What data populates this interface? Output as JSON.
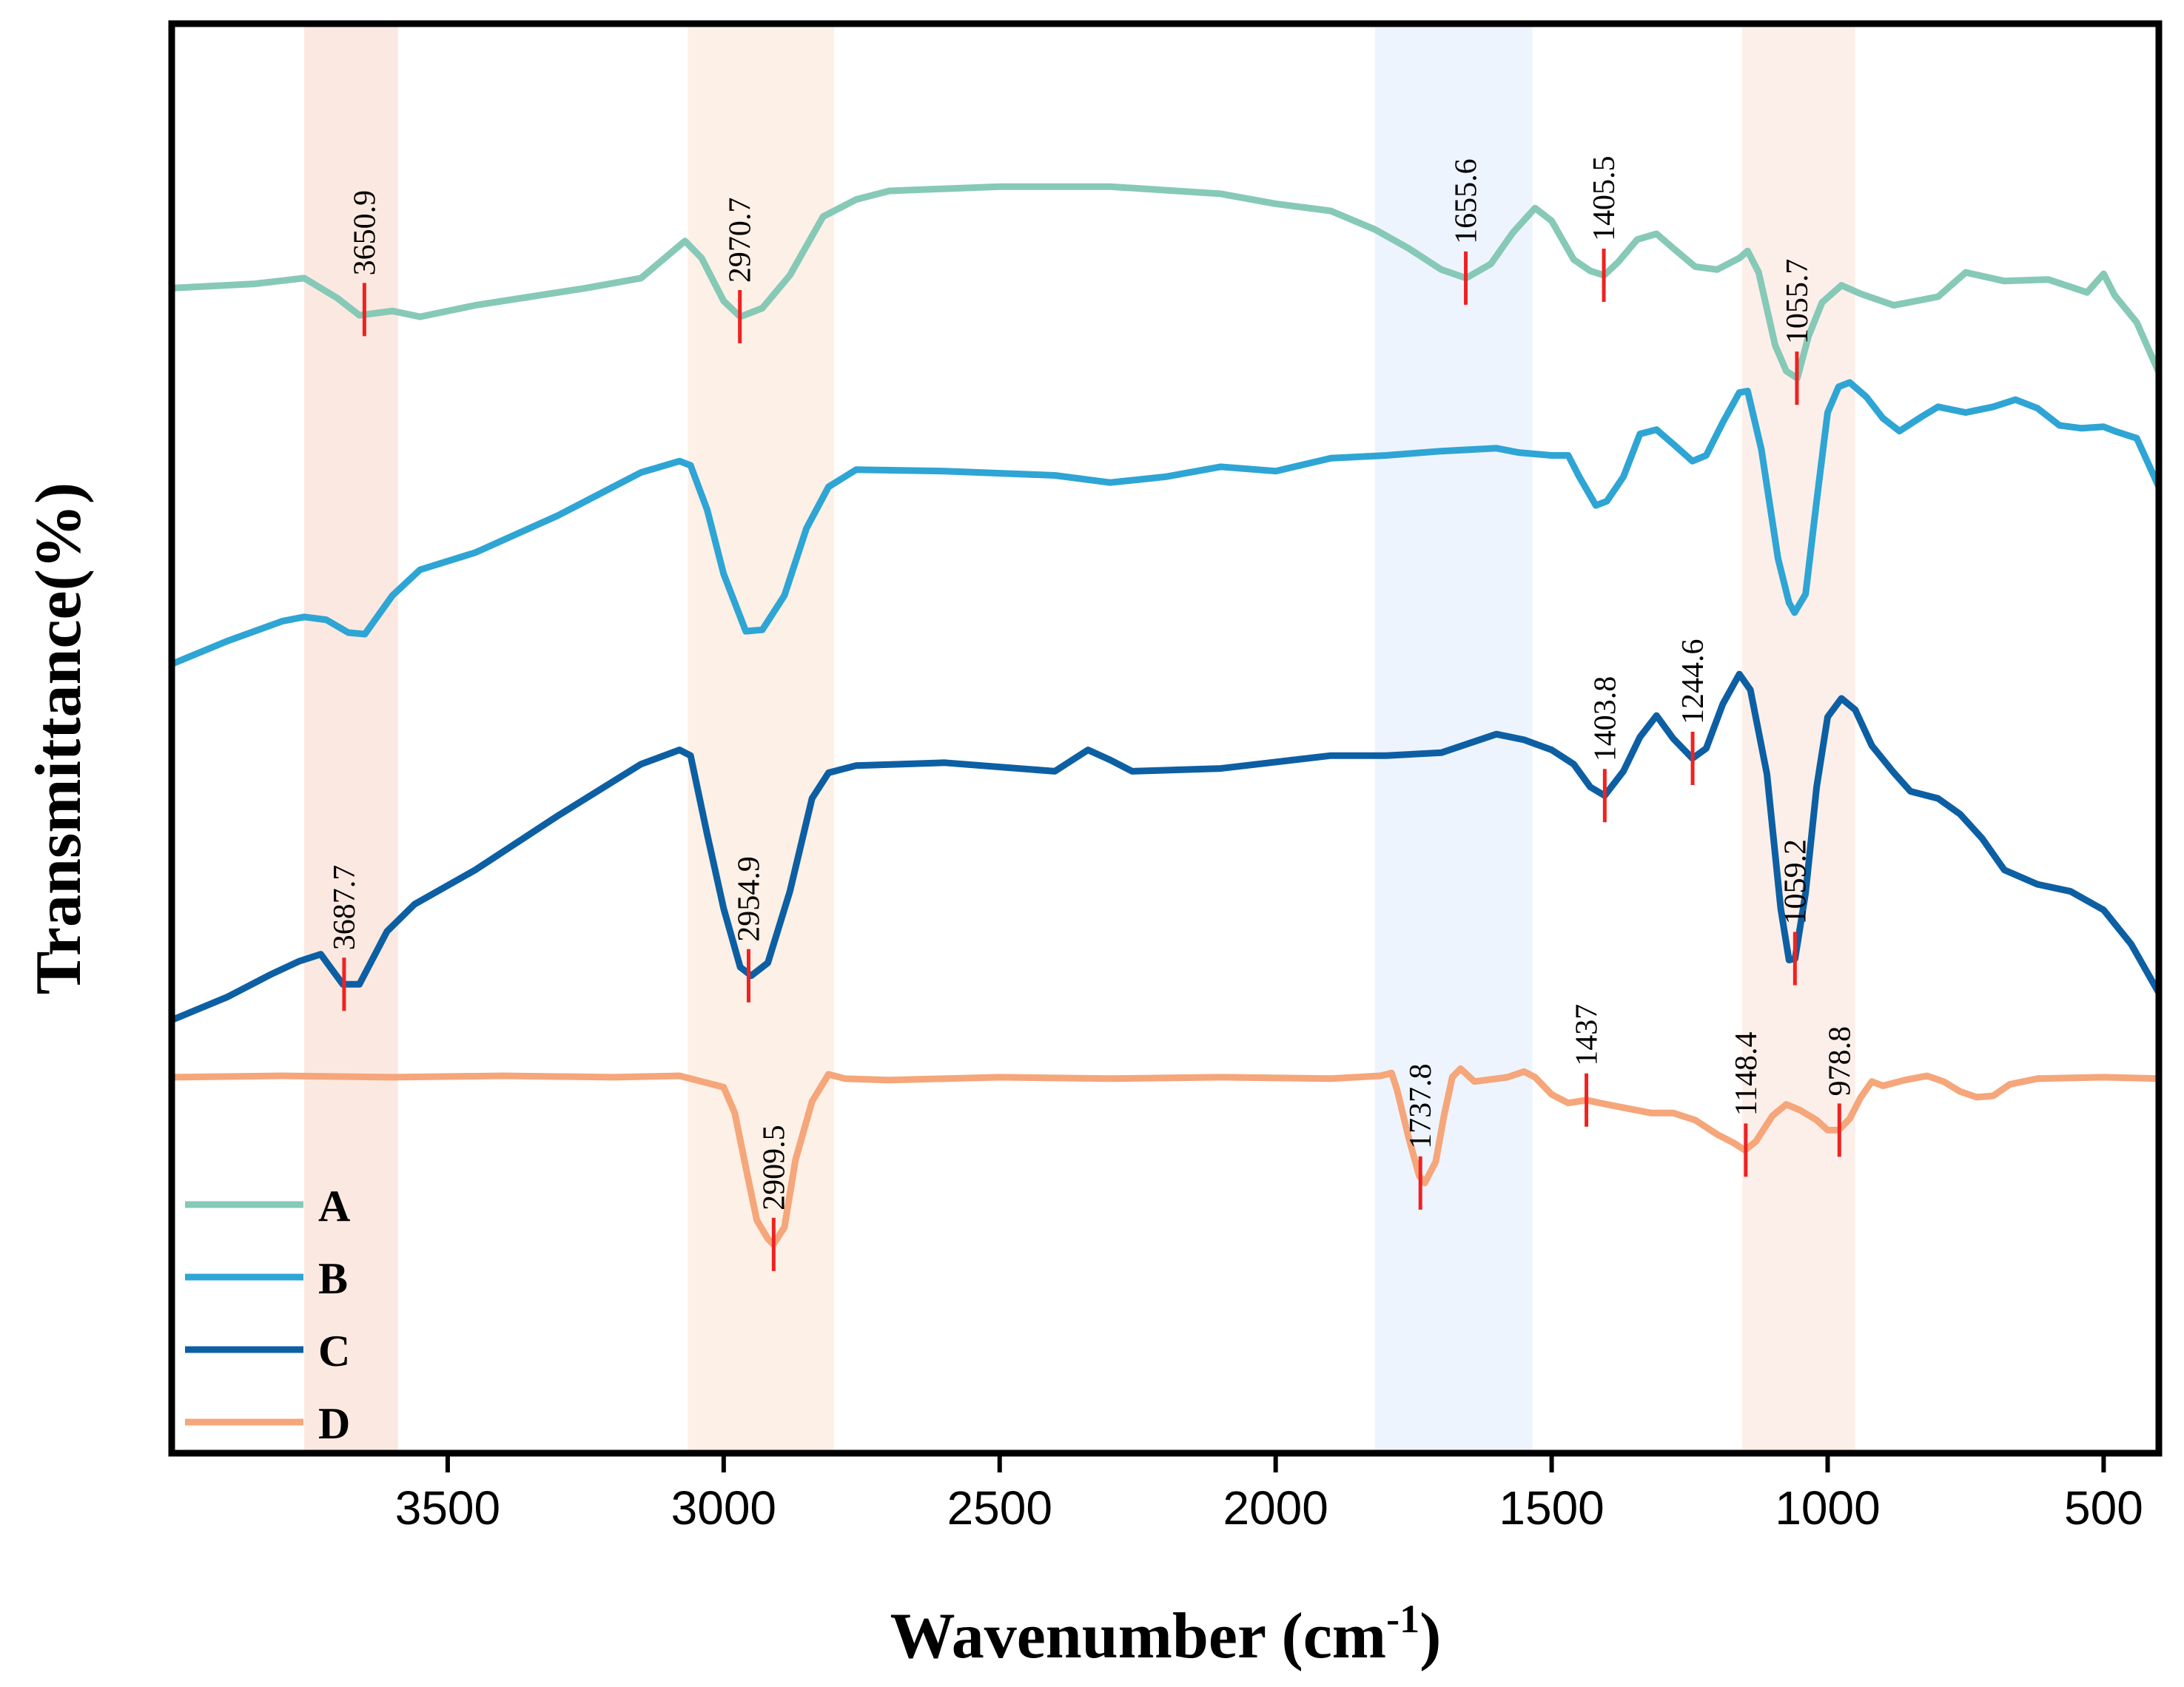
{
  "chart_data": {
    "type": "line",
    "title": "",
    "xlabel": "Wavenumber (cm",
    "xlabel_sup": "-1",
    "xlabel_close": ")",
    "ylabel": "Transmittance(%)",
    "xlim": [
      4000,
      400
    ],
    "xticks": [
      3500,
      3000,
      2500,
      2000,
      1500,
      1000,
      500
    ],
    "y_units": "arbitrary transmittance, stacked offsets (top = high)",
    "ylim": [
      0,
      100
    ],
    "legend_position": "bottom-left",
    "bands": [
      {
        "from": 3760,
        "to": 3590,
        "color": "#fbe9e1"
      },
      {
        "from": 3065,
        "to": 2800,
        "color": "#fdf0e6"
      },
      {
        "from": 1820,
        "to": 1535,
        "color": "#eef4fd"
      },
      {
        "from": 1155,
        "to": 950,
        "color": "#fcefea"
      }
    ],
    "series": [
      {
        "name": "A",
        "color": "#86c9b6",
        "points": [
          [
            4000,
            81.5
          ],
          [
            3850,
            81.8
          ],
          [
            3760,
            82.2
          ],
          [
            3700,
            80.8
          ],
          [
            3660,
            79.6
          ],
          [
            3600,
            79.9
          ],
          [
            3550,
            79.5
          ],
          [
            3450,
            80.3
          ],
          [
            3350,
            80.9
          ],
          [
            3250,
            81.5
          ],
          [
            3150,
            82.2
          ],
          [
            3070,
            84.8
          ],
          [
            3040,
            83.6
          ],
          [
            3000,
            80.6
          ],
          [
            2970,
            79.5
          ],
          [
            2930,
            80.1
          ],
          [
            2880,
            82.4
          ],
          [
            2820,
            86.5
          ],
          [
            2760,
            87.7
          ],
          [
            2700,
            88.3
          ],
          [
            2500,
            88.6
          ],
          [
            2300,
            88.6
          ],
          [
            2100,
            88.1
          ],
          [
            2000,
            87.4
          ],
          [
            1900,
            86.9
          ],
          [
            1820,
            85.6
          ],
          [
            1760,
            84.3
          ],
          [
            1700,
            82.8
          ],
          [
            1655,
            82.2
          ],
          [
            1610,
            83.2
          ],
          [
            1570,
            85.4
          ],
          [
            1530,
            87.1
          ],
          [
            1500,
            86.2
          ],
          [
            1460,
            83.5
          ],
          [
            1430,
            82.7
          ],
          [
            1405,
            82.4
          ],
          [
            1380,
            83.3
          ],
          [
            1345,
            84.9
          ],
          [
            1310,
            85.3
          ],
          [
            1280,
            84.3
          ],
          [
            1240,
            83.0
          ],
          [
            1200,
            82.8
          ],
          [
            1160,
            83.6
          ],
          [
            1145,
            84.1
          ],
          [
            1125,
            82.6
          ],
          [
            1095,
            77.5
          ],
          [
            1075,
            75.7
          ],
          [
            1055,
            75.2
          ],
          [
            1035,
            78.1
          ],
          [
            1010,
            80.5
          ],
          [
            975,
            81.7
          ],
          [
            940,
            81.1
          ],
          [
            880,
            80.3
          ],
          [
            800,
            80.9
          ],
          [
            750,
            82.6
          ],
          [
            680,
            82.0
          ],
          [
            600,
            82.1
          ],
          [
            530,
            81.2
          ],
          [
            500,
            82.5
          ],
          [
            480,
            81.0
          ],
          [
            440,
            79.1
          ],
          [
            400,
            75.6
          ]
        ]
      },
      {
        "name": "B",
        "color": "#2ea5d4",
        "points": [
          [
            4000,
            55.2
          ],
          [
            3900,
            56.8
          ],
          [
            3800,
            58.2
          ],
          [
            3760,
            58.5
          ],
          [
            3720,
            58.3
          ],
          [
            3680,
            57.4
          ],
          [
            3650,
            57.3
          ],
          [
            3600,
            60.0
          ],
          [
            3550,
            61.8
          ],
          [
            3450,
            63.0
          ],
          [
            3300,
            65.6
          ],
          [
            3150,
            68.6
          ],
          [
            3080,
            69.4
          ],
          [
            3060,
            69.1
          ],
          [
            3030,
            66.0
          ],
          [
            3000,
            61.5
          ],
          [
            2960,
            57.5
          ],
          [
            2930,
            57.6
          ],
          [
            2890,
            60.0
          ],
          [
            2850,
            64.7
          ],
          [
            2810,
            67.6
          ],
          [
            2760,
            68.8
          ],
          [
            2600,
            68.7
          ],
          [
            2400,
            68.4
          ],
          [
            2300,
            67.9
          ],
          [
            2200,
            68.3
          ],
          [
            2100,
            69.0
          ],
          [
            2000,
            68.7
          ],
          [
            1900,
            69.6
          ],
          [
            1800,
            69.8
          ],
          [
            1700,
            70.1
          ],
          [
            1600,
            70.3
          ],
          [
            1560,
            70.0
          ],
          [
            1500,
            69.8
          ],
          [
            1470,
            69.8
          ],
          [
            1450,
            68.3
          ],
          [
            1420,
            66.3
          ],
          [
            1400,
            66.6
          ],
          [
            1370,
            68.3
          ],
          [
            1340,
            71.3
          ],
          [
            1310,
            71.6
          ],
          [
            1280,
            70.6
          ],
          [
            1245,
            69.4
          ],
          [
            1220,
            69.8
          ],
          [
            1190,
            72.1
          ],
          [
            1160,
            74.2
          ],
          [
            1145,
            74.3
          ],
          [
            1120,
            70.2
          ],
          [
            1090,
            62.6
          ],
          [
            1070,
            59.5
          ],
          [
            1060,
            58.8
          ],
          [
            1040,
            60.1
          ],
          [
            1020,
            66.6
          ],
          [
            1000,
            72.8
          ],
          [
            980,
            74.6
          ],
          [
            960,
            74.9
          ],
          [
            930,
            73.9
          ],
          [
            900,
            72.4
          ],
          [
            870,
            71.5
          ],
          [
            830,
            72.5
          ],
          [
            800,
            73.2
          ],
          [
            750,
            72.8
          ],
          [
            700,
            73.2
          ],
          [
            660,
            73.7
          ],
          [
            620,
            73.1
          ],
          [
            580,
            71.9
          ],
          [
            540,
            71.7
          ],
          [
            500,
            71.8
          ],
          [
            480,
            71.5
          ],
          [
            440,
            71.0
          ],
          [
            400,
            67.6
          ]
        ]
      },
      {
        "name": "C",
        "color": "#0d5fa3",
        "points": [
          [
            4000,
            30.3
          ],
          [
            3900,
            31.9
          ],
          [
            3820,
            33.5
          ],
          [
            3770,
            34.4
          ],
          [
            3730,
            34.9
          ],
          [
            3690,
            32.8
          ],
          [
            3660,
            32.8
          ],
          [
            3610,
            36.5
          ],
          [
            3560,
            38.4
          ],
          [
            3450,
            40.8
          ],
          [
            3300,
            44.6
          ],
          [
            3150,
            48.2
          ],
          [
            3080,
            49.2
          ],
          [
            3060,
            48.8
          ],
          [
            3030,
            43.3
          ],
          [
            3000,
            38.1
          ],
          [
            2970,
            34.0
          ],
          [
            2950,
            33.4
          ],
          [
            2920,
            34.3
          ],
          [
            2880,
            39.3
          ],
          [
            2840,
            45.8
          ],
          [
            2810,
            47.6
          ],
          [
            2760,
            48.1
          ],
          [
            2600,
            48.3
          ],
          [
            2400,
            47.7
          ],
          [
            2340,
            49.2
          ],
          [
            2300,
            48.5
          ],
          [
            2260,
            47.7
          ],
          [
            2100,
            47.9
          ],
          [
            1900,
            48.8
          ],
          [
            1800,
            48.8
          ],
          [
            1700,
            49.0
          ],
          [
            1600,
            50.3
          ],
          [
            1550,
            49.9
          ],
          [
            1500,
            49.2
          ],
          [
            1460,
            48.2
          ],
          [
            1430,
            46.6
          ],
          [
            1404,
            46.0
          ],
          [
            1370,
            47.7
          ],
          [
            1340,
            50.1
          ],
          [
            1310,
            51.6
          ],
          [
            1280,
            50.0
          ],
          [
            1245,
            48.6
          ],
          [
            1220,
            49.3
          ],
          [
            1190,
            52.4
          ],
          [
            1160,
            54.5
          ],
          [
            1140,
            53.4
          ],
          [
            1110,
            47.5
          ],
          [
            1085,
            38.1
          ],
          [
            1070,
            34.5
          ],
          [
            1059,
            34.6
          ],
          [
            1040,
            39.2
          ],
          [
            1020,
            46.6
          ],
          [
            1000,
            51.5
          ],
          [
            975,
            52.8
          ],
          [
            950,
            52.0
          ],
          [
            920,
            49.5
          ],
          [
            880,
            47.6
          ],
          [
            850,
            46.3
          ],
          [
            800,
            45.8
          ],
          [
            760,
            44.7
          ],
          [
            720,
            43.0
          ],
          [
            680,
            40.8
          ],
          [
            620,
            39.8
          ],
          [
            560,
            39.3
          ],
          [
            500,
            38.0
          ],
          [
            450,
            35.6
          ],
          [
            400,
            32.2
          ]
        ]
      },
      {
        "name": "D",
        "color": "#f5a67a",
        "points": [
          [
            4000,
            26.3
          ],
          [
            3800,
            26.4
          ],
          [
            3600,
            26.3
          ],
          [
            3400,
            26.4
          ],
          [
            3200,
            26.3
          ],
          [
            3080,
            26.4
          ],
          [
            3050,
            26.1
          ],
          [
            3000,
            25.6
          ],
          [
            2980,
            23.8
          ],
          [
            2960,
            20.0
          ],
          [
            2940,
            16.3
          ],
          [
            2920,
            15.0
          ],
          [
            2910,
            14.6
          ],
          [
            2890,
            15.8
          ],
          [
            2870,
            20.5
          ],
          [
            2840,
            24.6
          ],
          [
            2810,
            26.5
          ],
          [
            2780,
            26.2
          ],
          [
            2700,
            26.1
          ],
          [
            2500,
            26.3
          ],
          [
            2300,
            26.2
          ],
          [
            2100,
            26.3
          ],
          [
            1900,
            26.2
          ],
          [
            1810,
            26.4
          ],
          [
            1790,
            26.6
          ],
          [
            1780,
            25.4
          ],
          [
            1760,
            22.2
          ],
          [
            1740,
            19.4
          ],
          [
            1730,
            18.9
          ],
          [
            1710,
            20.4
          ],
          [
            1695,
            23.6
          ],
          [
            1680,
            26.3
          ],
          [
            1665,
            26.9
          ],
          [
            1640,
            26.0
          ],
          [
            1580,
            26.3
          ],
          [
            1550,
            26.7
          ],
          [
            1530,
            26.3
          ],
          [
            1500,
            25.1
          ],
          [
            1470,
            24.5
          ],
          [
            1437,
            24.7
          ],
          [
            1400,
            24.4
          ],
          [
            1360,
            24.1
          ],
          [
            1320,
            23.8
          ],
          [
            1280,
            23.8
          ],
          [
            1240,
            23.3
          ],
          [
            1200,
            22.3
          ],
          [
            1170,
            21.7
          ],
          [
            1150,
            21.2
          ],
          [
            1130,
            21.8
          ],
          [
            1100,
            23.6
          ],
          [
            1075,
            24.4
          ],
          [
            1050,
            24.0
          ],
          [
            1020,
            23.3
          ],
          [
            1000,
            22.6
          ],
          [
            980,
            22.6
          ],
          [
            960,
            23.4
          ],
          [
            940,
            24.9
          ],
          [
            920,
            26.0
          ],
          [
            900,
            25.7
          ],
          [
            860,
            26.1
          ],
          [
            820,
            26.4
          ],
          [
            790,
            26.0
          ],
          [
            760,
            25.3
          ],
          [
            730,
            24.9
          ],
          [
            700,
            25.0
          ],
          [
            670,
            25.8
          ],
          [
            620,
            26.2
          ],
          [
            500,
            26.3
          ],
          [
            400,
            26.2
          ]
        ]
      }
    ],
    "annotations": [
      {
        "series": "A",
        "text": "3650.9",
        "x": 3650.9,
        "y": 80.0,
        "label_pos": "above"
      },
      {
        "series": "A",
        "text": "2970.7",
        "x": 2970.7,
        "y": 79.5,
        "label_pos": "above"
      },
      {
        "series": "A",
        "text": "1655.6",
        "x": 1655.6,
        "y": 82.2,
        "label_pos": "above"
      },
      {
        "series": "A",
        "text": "1405.5",
        "x": 1405.5,
        "y": 82.4,
        "label_pos": "above"
      },
      {
        "series": "A",
        "text": "1055.7",
        "x": 1055.7,
        "y": 75.2,
        "label_pos": "above"
      },
      {
        "series": "C",
        "text": "3687.7",
        "x": 3687.7,
        "y": 32.8,
        "label_pos": "above"
      },
      {
        "series": "C",
        "text": "2954.9",
        "x": 2954.9,
        "y": 33.4,
        "label_pos": "above"
      },
      {
        "series": "C",
        "text": "1403.8",
        "x": 1403.8,
        "y": 46.0,
        "label_pos": "above"
      },
      {
        "series": "C",
        "text": "1244.6",
        "x": 1244.6,
        "y": 48.6,
        "label_pos": "above"
      },
      {
        "series": "C",
        "text": "1059.2",
        "x": 1059.2,
        "y": 34.6,
        "label_pos": "above"
      },
      {
        "series": "D",
        "text": "2909.5",
        "x": 2909.5,
        "y": 14.6,
        "label_pos": "above"
      },
      {
        "series": "D",
        "text": "1737.8",
        "x": 1737.8,
        "y": 18.9,
        "label_pos": "above"
      },
      {
        "series": "D",
        "text": "1437",
        "x": 1437,
        "y": 24.7,
        "label_pos": "above"
      },
      {
        "series": "D",
        "text": "1148.4",
        "x": 1148.4,
        "y": 21.2,
        "label_pos": "above"
      },
      {
        "series": "D",
        "text": "978.8",
        "x": 978.8,
        "y": 22.6,
        "label_pos": "above"
      }
    ],
    "marker_color": "#ee2222"
  }
}
